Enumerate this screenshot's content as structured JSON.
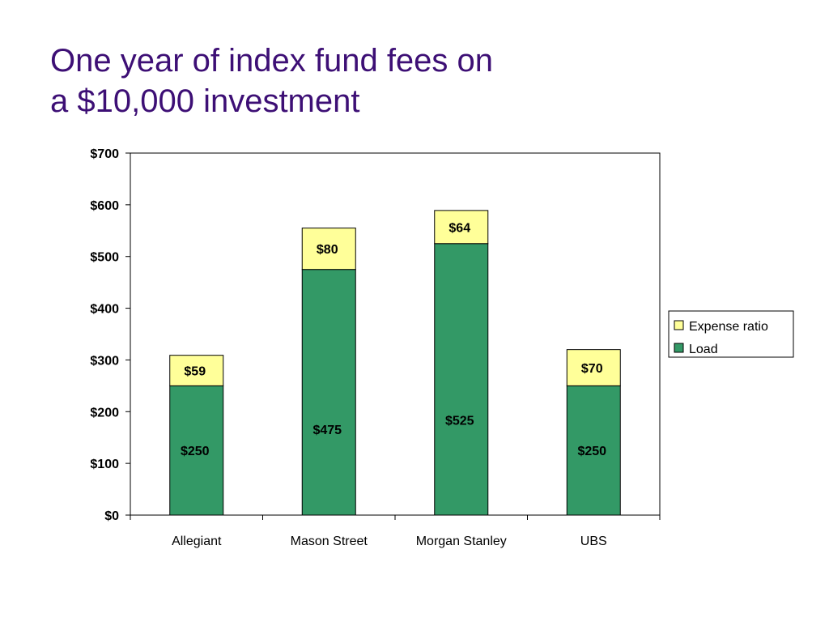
{
  "slide": {
    "title_line1": "One year of index fund fees on",
    "title_line2": "a $10,000 investment"
  },
  "chart_data": {
    "type": "bar",
    "stacked": true,
    "categories": [
      "Allegiant",
      "Mason Street",
      "Morgan Stanley",
      "UBS"
    ],
    "series": [
      {
        "name": "Load",
        "values": [
          250,
          475,
          525,
          250
        ],
        "labels": [
          "$250",
          "$475",
          "$525",
          "$250"
        ],
        "color": "#339966"
      },
      {
        "name": "Expense ratio",
        "values": [
          59,
          80,
          64,
          70
        ],
        "labels": [
          "$59",
          "$80",
          "$64",
          "$70"
        ],
        "color": "#ffff99"
      }
    ],
    "ylim": [
      0,
      700
    ],
    "yticks": [
      0,
      100,
      200,
      300,
      400,
      500,
      600,
      700
    ],
    "ytick_labels": [
      "$0",
      "$100",
      "$200",
      "$300",
      "$400",
      "$500",
      "$600",
      "$700"
    ],
    "legend": {
      "placement": "right",
      "entries": [
        "Expense ratio",
        "Load"
      ]
    },
    "grid": false
  }
}
